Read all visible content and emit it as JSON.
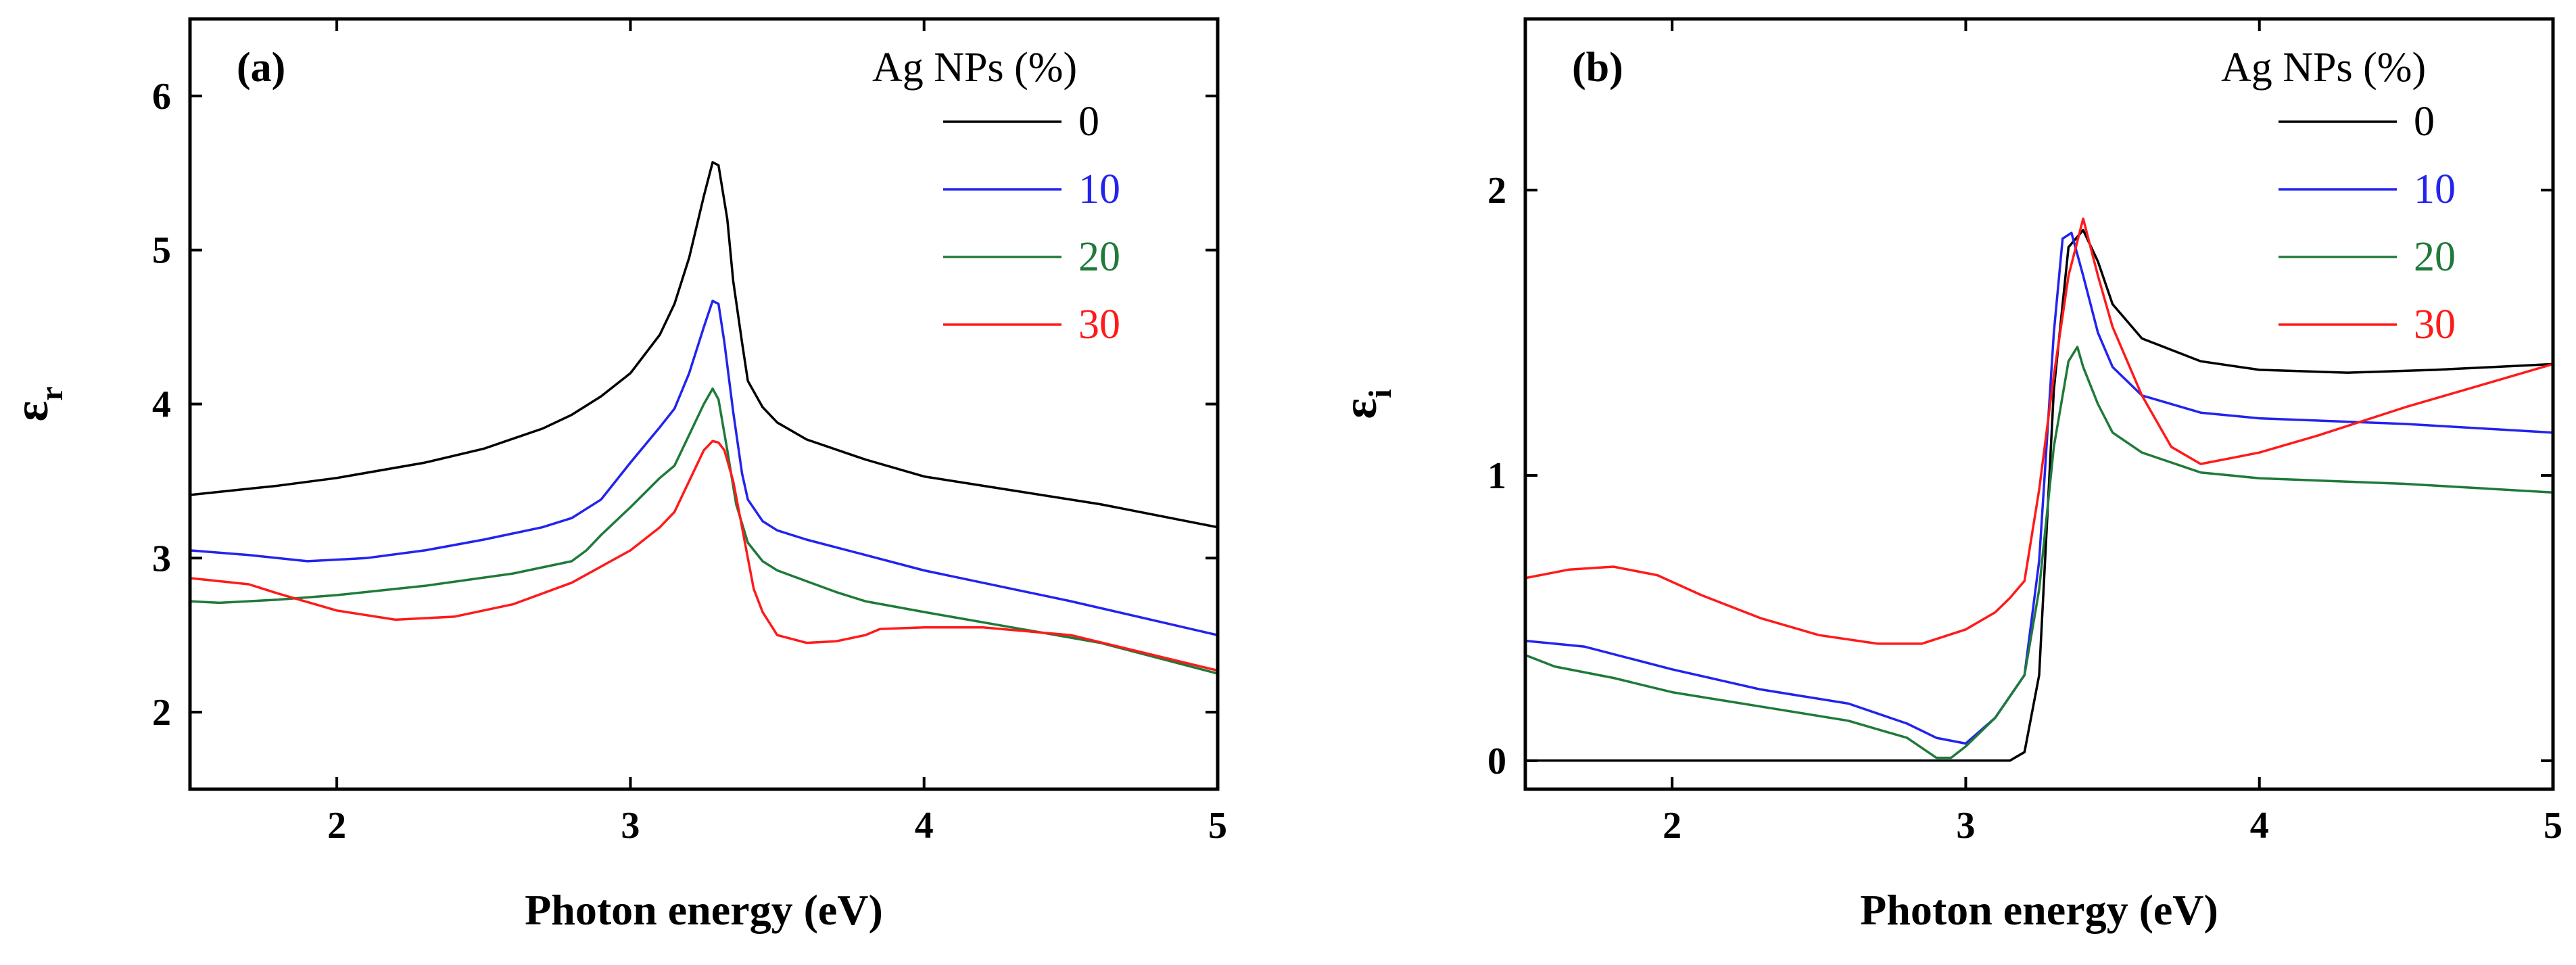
{
  "chart_data": [
    {
      "type": "line",
      "panel_label": "(a)",
      "xlabel": "Photon energy (eV)",
      "ylabel": "ε",
      "ylabel_sub": "r",
      "xlim": [
        1.5,
        5.0
      ],
      "ylim": [
        1.5,
        6.5
      ],
      "xticks": [
        2,
        3,
        4,
        5
      ],
      "yticks": [
        2,
        3,
        4,
        5,
        6
      ],
      "legend_title": "Ag NPs (%)",
      "legend_position": "top-right",
      "series": [
        {
          "name": "0",
          "color": "#000000",
          "x": [
            1.5,
            1.8,
            2.0,
            2.3,
            2.5,
            2.7,
            2.8,
            2.9,
            3.0,
            3.1,
            3.15,
            3.2,
            3.25,
            3.28,
            3.3,
            3.33,
            3.35,
            3.38,
            3.4,
            3.45,
            3.5,
            3.6,
            3.8,
            4.0,
            4.3,
            4.6,
            5.0
          ],
          "y": [
            3.41,
            3.47,
            3.52,
            3.62,
            3.71,
            3.84,
            3.93,
            4.05,
            4.2,
            4.45,
            4.65,
            4.95,
            5.35,
            5.57,
            5.55,
            5.2,
            4.8,
            4.4,
            4.15,
            3.98,
            3.88,
            3.77,
            3.64,
            3.53,
            3.44,
            3.35,
            3.2
          ]
        },
        {
          "name": "10",
          "color": "#2323ee",
          "x": [
            1.5,
            1.7,
            1.9,
            2.1,
            2.3,
            2.5,
            2.7,
            2.8,
            2.9,
            3.0,
            3.1,
            3.15,
            3.2,
            3.25,
            3.28,
            3.3,
            3.32,
            3.35,
            3.38,
            3.4,
            3.45,
            3.5,
            3.6,
            3.8,
            4.0,
            4.5,
            5.0
          ],
          "y": [
            3.05,
            3.02,
            2.98,
            3.0,
            3.05,
            3.12,
            3.2,
            3.26,
            3.38,
            3.62,
            3.85,
            3.97,
            4.2,
            4.5,
            4.67,
            4.65,
            4.4,
            3.95,
            3.55,
            3.38,
            3.24,
            3.18,
            3.12,
            3.02,
            2.92,
            2.72,
            2.5
          ]
        },
        {
          "name": "20",
          "color": "#1f7a3a",
          "x": [
            1.5,
            1.6,
            1.8,
            2.0,
            2.3,
            2.6,
            2.8,
            2.85,
            2.9,
            3.0,
            3.1,
            3.15,
            3.2,
            3.25,
            3.28,
            3.3,
            3.33,
            3.36,
            3.4,
            3.45,
            3.5,
            3.6,
            3.7,
            3.8,
            4.0,
            4.3,
            4.6,
            5.0
          ],
          "y": [
            2.72,
            2.71,
            2.73,
            2.76,
            2.82,
            2.9,
            2.98,
            3.05,
            3.15,
            3.33,
            3.52,
            3.6,
            3.8,
            4.0,
            4.1,
            4.03,
            3.7,
            3.35,
            3.1,
            2.98,
            2.92,
            2.85,
            2.78,
            2.72,
            2.65,
            2.55,
            2.45,
            2.25
          ]
        },
        {
          "name": "30",
          "color": "#ff1a1a",
          "x": [
            1.5,
            1.7,
            1.8,
            2.0,
            2.2,
            2.4,
            2.6,
            2.8,
            3.0,
            3.1,
            3.15,
            3.2,
            3.25,
            3.28,
            3.3,
            3.32,
            3.35,
            3.38,
            3.4,
            3.42,
            3.45,
            3.5,
            3.6,
            3.7,
            3.8,
            3.85,
            4.0,
            4.2,
            4.5,
            5.0
          ],
          "y": [
            2.87,
            2.83,
            2.77,
            2.66,
            2.6,
            2.62,
            2.7,
            2.84,
            3.05,
            3.2,
            3.3,
            3.5,
            3.7,
            3.76,
            3.75,
            3.7,
            3.5,
            3.2,
            3.0,
            2.8,
            2.65,
            2.5,
            2.45,
            2.46,
            2.5,
            2.54,
            2.55,
            2.55,
            2.5,
            2.27
          ]
        }
      ]
    },
    {
      "type": "line",
      "panel_label": "(b)",
      "xlabel": "Photon energy (eV)",
      "ylabel": "ε",
      "ylabel_sub": "i",
      "xlim": [
        1.5,
        5.0
      ],
      "ylim": [
        -0.1,
        2.6
      ],
      "xticks": [
        2,
        3,
        4,
        5
      ],
      "yticks": [
        0,
        1,
        2
      ],
      "legend_title": "Ag NPs (%)",
      "legend_position": "top-right",
      "series": [
        {
          "name": "0",
          "color": "#000000",
          "x": [
            1.5,
            2.0,
            2.5,
            3.0,
            3.15,
            3.2,
            3.25,
            3.3,
            3.35,
            3.4,
            3.45,
            3.5,
            3.6,
            3.8,
            4.0,
            4.3,
            4.6,
            5.0
          ],
          "y": [
            0.0,
            0.0,
            0.0,
            0.0,
            0.0,
            0.03,
            0.3,
            1.3,
            1.8,
            1.86,
            1.75,
            1.6,
            1.48,
            1.4,
            1.37,
            1.36,
            1.37,
            1.39
          ]
        },
        {
          "name": "10",
          "color": "#2323ee",
          "x": [
            1.5,
            1.7,
            2.0,
            2.3,
            2.6,
            2.8,
            2.9,
            3.0,
            3.1,
            3.2,
            3.25,
            3.3,
            3.33,
            3.36,
            3.4,
            3.45,
            3.5,
            3.6,
            3.8,
            4.0,
            4.5,
            5.0
          ],
          "y": [
            0.42,
            0.4,
            0.32,
            0.25,
            0.2,
            0.13,
            0.08,
            0.06,
            0.15,
            0.3,
            0.7,
            1.5,
            1.83,
            1.85,
            1.7,
            1.5,
            1.38,
            1.28,
            1.22,
            1.2,
            1.18,
            1.15
          ]
        },
        {
          "name": "20",
          "color": "#1f7a3a",
          "x": [
            1.5,
            1.6,
            1.8,
            2.0,
            2.3,
            2.6,
            2.8,
            2.9,
            2.95,
            3.0,
            3.1,
            3.2,
            3.25,
            3.3,
            3.35,
            3.38,
            3.4,
            3.45,
            3.5,
            3.6,
            3.8,
            4.0,
            4.5,
            5.0
          ],
          "y": [
            0.37,
            0.33,
            0.29,
            0.24,
            0.19,
            0.14,
            0.08,
            0.01,
            0.01,
            0.05,
            0.15,
            0.3,
            0.6,
            1.1,
            1.4,
            1.45,
            1.38,
            1.25,
            1.15,
            1.08,
            1.01,
            0.99,
            0.97,
            0.94
          ]
        },
        {
          "name": "30",
          "color": "#ff1a1a",
          "x": [
            1.5,
            1.65,
            1.8,
            1.95,
            2.1,
            2.3,
            2.5,
            2.7,
            2.85,
            3.0,
            3.1,
            3.15,
            3.2,
            3.25,
            3.3,
            3.35,
            3.4,
            3.42,
            3.45,
            3.5,
            3.6,
            3.7,
            3.8,
            3.9,
            4.0,
            4.2,
            4.5,
            4.8,
            5.0
          ],
          "y": [
            0.64,
            0.67,
            0.68,
            0.65,
            0.58,
            0.5,
            0.44,
            0.41,
            0.41,
            0.46,
            0.52,
            0.57,
            0.63,
            0.95,
            1.35,
            1.7,
            1.9,
            1.82,
            1.7,
            1.52,
            1.28,
            1.1,
            1.04,
            1.06,
            1.08,
            1.14,
            1.24,
            1.33,
            1.39
          ]
        }
      ]
    }
  ]
}
